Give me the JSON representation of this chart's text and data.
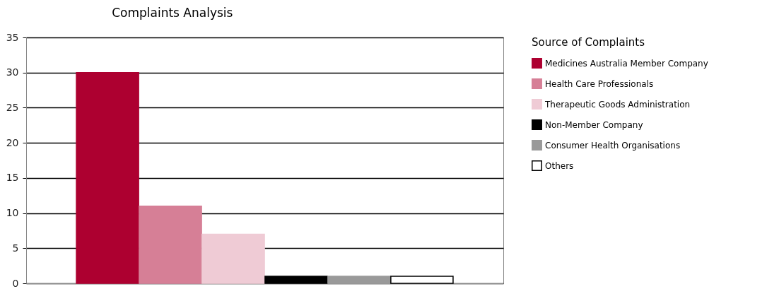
{
  "chart_data": {
    "type": "bar",
    "title": "Complaints Analysis",
    "legend_title": "Source of Complaints",
    "categories": [
      null
    ],
    "series": [
      {
        "name": "Medicines Australia Member Company",
        "color": "#ad0030",
        "values": [
          30
        ]
      },
      {
        "name": "Health Care Professionals",
        "color": "#d67f96",
        "values": [
          11
        ]
      },
      {
        "name": "Therapeutic Goods Administration",
        "color": "#efcbd5",
        "values": [
          7
        ]
      },
      {
        "name": "Non-Member Company",
        "color": "#000000",
        "values": [
          1
        ]
      },
      {
        "name": "Consumer Health Organisations",
        "color": "#999999",
        "values": [
          1
        ]
      },
      {
        "name": "Others",
        "color": "#ffffff",
        "values": [
          1
        ]
      }
    ],
    "ylim": [
      0,
      35
    ],
    "yticks": [
      0,
      5,
      10,
      15,
      20,
      25,
      30,
      35
    ],
    "grid": "y",
    "legend": "right"
  }
}
